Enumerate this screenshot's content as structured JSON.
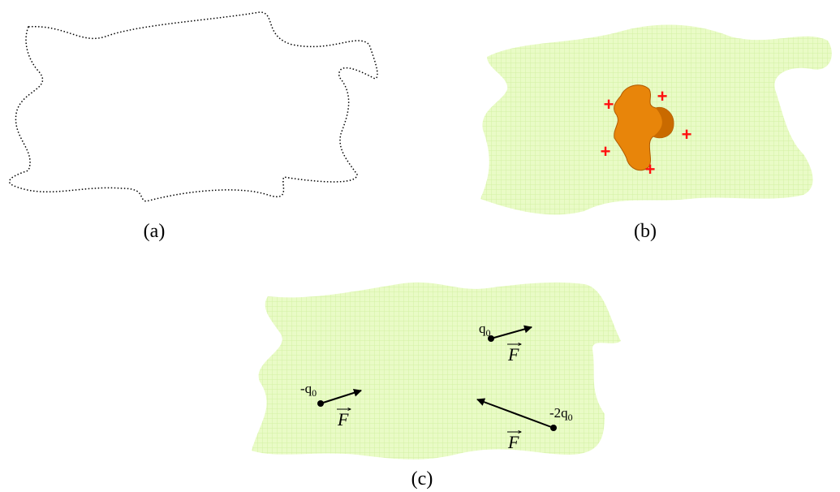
{
  "panels": [
    {
      "caption": "(a)"
    },
    {
      "caption": "(b)",
      "charges": [
        "+",
        "+",
        "+",
        "+",
        "+"
      ]
    },
    {
      "caption": "(c)",
      "test_charges": [
        {
          "label": {
            "main": "q",
            "sub": "0"
          },
          "force": "F"
        },
        {
          "label": {
            "main": "-q",
            "sub": "0"
          },
          "force": "F"
        },
        {
          "label": {
            "main": "-2q",
            "sub": "0"
          },
          "force": "F"
        }
      ]
    }
  ]
}
